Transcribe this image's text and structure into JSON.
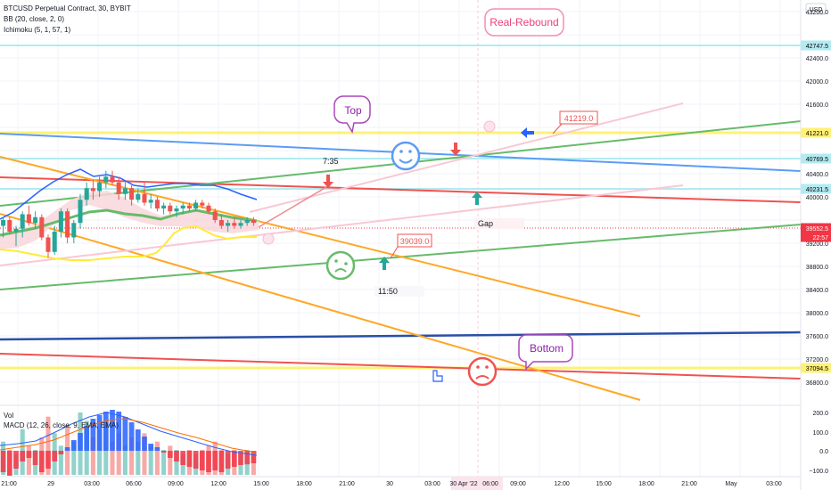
{
  "header": {
    "symbol_line": "BTCUSD Perpetual Contract, 30, BYBIT",
    "bb_line": "BB (20, close, 2, 0)",
    "ichimoku_line": "Ichimoku (5, 1, 57, 1)",
    "vol_label": "Vol",
    "macd_label": "MACD (12, 26, close, 9, EMA, EMA)"
  },
  "currency": "USD",
  "price_axis": {
    "ticks": [
      "43200.0",
      "42400.0",
      "42000.0",
      "41600.0",
      "40400.0",
      "40000.0",
      "39200.0",
      "38800.0",
      "38400.0",
      "38000.0",
      "37600.0",
      "37200.0",
      "36800.0"
    ]
  },
  "price_tags": [
    {
      "text": "42747.5",
      "bg": "#b2ebf2",
      "fg": "#000000"
    },
    {
      "text": "41221.0",
      "bg": "#fff176",
      "fg": "#000000"
    },
    {
      "text": "40769.5",
      "bg": "#b2ebf2",
      "fg": "#000000"
    },
    {
      "text": "40231.5",
      "bg": "#b2ebf2",
      "fg": "#000000"
    },
    {
      "text": "39552.5",
      "bg": "#f23645",
      "fg": "#ffffff"
    },
    {
      "text": "22:57",
      "bg": "#f23645",
      "fg": "#ffffff"
    },
    {
      "text": "37094.5",
      "bg": "#fff176",
      "fg": "#000000"
    }
  ],
  "macd_axis": {
    "ticks": [
      "200.0",
      "100.0",
      "0.0",
      "−100.0"
    ]
  },
  "time_axis": {
    "ticks": [
      "21:00",
      "29",
      "03:00",
      "06:00",
      "09:00",
      "12:00",
      "15:00",
      "18:00",
      "21:00",
      "30",
      "03:00",
      "30 Apr '22",
      "06:00",
      "09:00",
      "12:00",
      "15:00",
      "18:00",
      "21:00",
      "May",
      "03:00"
    ]
  },
  "annotations": {
    "real_rebound": "Real-Rebound",
    "top": "Top",
    "bottom": "Bottom",
    "callout_41219": "41219.0",
    "callout_39039": "39039.0",
    "time_735": "7:35",
    "time_1150": "11:50",
    "gap": "Gap"
  },
  "colors": {
    "up": "#26a69a",
    "down": "#ef5350",
    "yellow_line": "#fff176",
    "cyan_line": "#b2ebf2",
    "orange": "#ffa726",
    "green": "#66bb6a",
    "red": "#ef5350",
    "blue": "#5b9cf6",
    "navy": "#2a4fa8",
    "pink": "#f8c8d4"
  },
  "chart_data": {
    "type": "candlestick",
    "ylim": [
      36400,
      43400
    ],
    "horizontal_levels": [
      42747.5,
      41221.0,
      40769.5,
      40231.5,
      37094.5
    ],
    "last_price": 39552.5,
    "candles": [
      {
        "o": 39500,
        "h": 39650,
        "l": 39300,
        "c": 39600
      },
      {
        "o": 39600,
        "h": 39650,
        "l": 39350,
        "c": 39400
      },
      {
        "o": 39400,
        "h": 39500,
        "l": 39150,
        "c": 39450
      },
      {
        "o": 39450,
        "h": 39750,
        "l": 39300,
        "c": 39700
      },
      {
        "o": 39700,
        "h": 39850,
        "l": 39500,
        "c": 39550
      },
      {
        "o": 39550,
        "h": 39750,
        "l": 39450,
        "c": 39650
      },
      {
        "o": 39650,
        "h": 39700,
        "l": 39250,
        "c": 39300
      },
      {
        "o": 39300,
        "h": 39350,
        "l": 38950,
        "c": 39050
      },
      {
        "o": 39050,
        "h": 39500,
        "l": 39000,
        "c": 39400
      },
      {
        "o": 39400,
        "h": 39800,
        "l": 39300,
        "c": 39750
      },
      {
        "o": 39750,
        "h": 39800,
        "l": 39200,
        "c": 39300
      },
      {
        "o": 39300,
        "h": 39600,
        "l": 39200,
        "c": 39550
      },
      {
        "o": 39550,
        "h": 40050,
        "l": 39450,
        "c": 39950
      },
      {
        "o": 39950,
        "h": 40250,
        "l": 39850,
        "c": 40150
      },
      {
        "o": 40150,
        "h": 40300,
        "l": 39950,
        "c": 40100
      },
      {
        "o": 40100,
        "h": 40350,
        "l": 40000,
        "c": 40250
      },
      {
        "o": 40250,
        "h": 40450,
        "l": 40150,
        "c": 40350
      },
      {
        "o": 40350,
        "h": 40450,
        "l": 40200,
        "c": 40250
      },
      {
        "o": 40250,
        "h": 40350,
        "l": 39950,
        "c": 40050
      },
      {
        "o": 40050,
        "h": 40250,
        "l": 39950,
        "c": 40150
      },
      {
        "o": 40150,
        "h": 40200,
        "l": 39850,
        "c": 39950
      },
      {
        "o": 39950,
        "h": 40150,
        "l": 39900,
        "c": 40050
      },
      {
        "o": 40050,
        "h": 40250,
        "l": 39850,
        "c": 39900
      },
      {
        "o": 39900,
        "h": 40050,
        "l": 39800,
        "c": 39950
      },
      {
        "o": 39950,
        "h": 40000,
        "l": 39750,
        "c": 39800
      },
      {
        "o": 39800,
        "h": 39900,
        "l": 39700,
        "c": 39850
      },
      {
        "o": 39850,
        "h": 39900,
        "l": 39700,
        "c": 39750
      },
      {
        "o": 39750,
        "h": 39850,
        "l": 39650,
        "c": 39800
      },
      {
        "o": 39800,
        "h": 39900,
        "l": 39700,
        "c": 39850
      },
      {
        "o": 39850,
        "h": 39900,
        "l": 39750,
        "c": 39800
      },
      {
        "o": 39800,
        "h": 39950,
        "l": 39750,
        "c": 39900
      },
      {
        "o": 39900,
        "h": 39950,
        "l": 39800,
        "c": 39850
      },
      {
        "o": 39850,
        "h": 39900,
        "l": 39700,
        "c": 39750
      },
      {
        "o": 39750,
        "h": 39800,
        "l": 39550,
        "c": 39600
      },
      {
        "o": 39600,
        "h": 39700,
        "l": 39450,
        "c": 39500
      },
      {
        "o": 39500,
        "h": 39600,
        "l": 39400,
        "c": 39550
      },
      {
        "o": 39550,
        "h": 39650,
        "l": 39450,
        "c": 39500
      },
      {
        "o": 39500,
        "h": 39600,
        "l": 39450,
        "c": 39550
      },
      {
        "o": 39550,
        "h": 39650,
        "l": 39500,
        "c": 39600
      },
      {
        "o": 39600,
        "h": 39650,
        "l": 39500,
        "c": 39552.5
      }
    ],
    "volume": [
      40,
      30,
      25,
      55,
      35,
      30,
      45,
      70,
      50,
      35,
      60,
      40,
      75,
      65,
      45,
      55,
      60,
      40,
      50,
      35,
      45,
      40,
      50,
      35,
      40,
      30,
      35,
      30,
      25,
      30,
      25,
      30,
      35,
      40,
      30,
      25,
      30,
      25,
      30,
      25
    ],
    "macd_hist": [
      -60,
      -70,
      -50,
      -30,
      -20,
      -40,
      -60,
      -50,
      -30,
      -10,
      10,
      30,
      50,
      70,
      90,
      100,
      110,
      115,
      110,
      95,
      80,
      60,
      40,
      20,
      10,
      -5,
      -20,
      -30,
      -40,
      -45,
      -50,
      -55,
      -60,
      -55,
      -60,
      -50,
      -45,
      -40,
      -38,
      -35
    ]
  }
}
